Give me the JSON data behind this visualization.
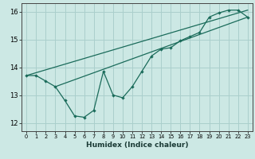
{
  "title": "",
  "xlabel": "Humidex (Indice chaleur)",
  "xlim": [
    -0.5,
    23.5
  ],
  "ylim": [
    11.7,
    16.3
  ],
  "yticks": [
    12,
    13,
    14,
    15,
    16
  ],
  "xticks": [
    0,
    1,
    2,
    3,
    4,
    5,
    6,
    7,
    8,
    9,
    10,
    11,
    12,
    13,
    14,
    15,
    16,
    17,
    18,
    19,
    20,
    21,
    22,
    23
  ],
  "bg_color": "#cce8e4",
  "grid_color": "#aacfcc",
  "line_color": "#1a6b5a",
  "line1_x": [
    0,
    1,
    2,
    3,
    4,
    5,
    6,
    7,
    8,
    9,
    10,
    11,
    12,
    13,
    14,
    15,
    16,
    17,
    18,
    19,
    20,
    21,
    22,
    23
  ],
  "line1_y": [
    13.7,
    13.7,
    13.5,
    13.3,
    12.8,
    12.25,
    12.2,
    12.45,
    13.85,
    13.0,
    12.9,
    13.3,
    13.85,
    14.4,
    14.65,
    14.7,
    14.95,
    15.1,
    15.25,
    15.8,
    15.95,
    16.05,
    16.05,
    15.8
  ],
  "line2_x": [
    0,
    23
  ],
  "line2_y": [
    13.7,
    16.05
  ],
  "line3_x": [
    3,
    23
  ],
  "line3_y": [
    13.3,
    15.8
  ]
}
